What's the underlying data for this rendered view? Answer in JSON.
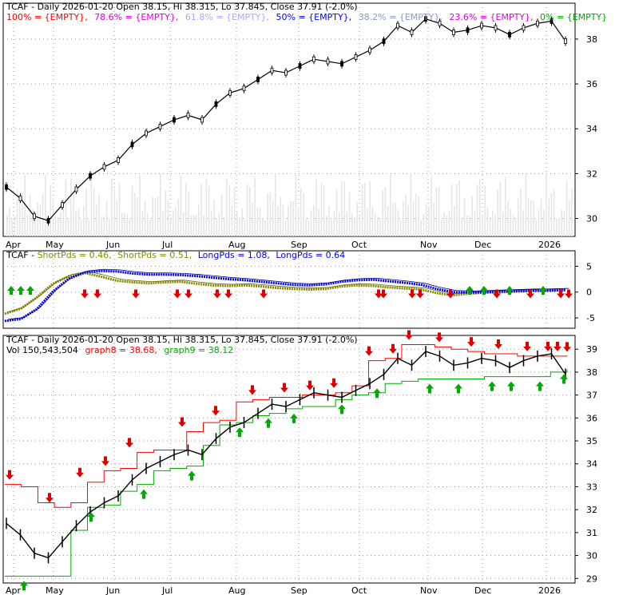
{
  "chart_data": [
    {
      "type": "line",
      "title": "TCAF - Daily 2026-01-20 Open 38.15, Hi 38.315, Lo 37.845, Close 37.91 (-2.0%)",
      "fib_legend": [
        {
          "text": "100% = {EMPTY},",
          "color": "#ff0000"
        },
        {
          "text": "78.6% = {EMPTY},",
          "color": "#dd00dd"
        },
        {
          "text": "61.8% = {EMPTY},",
          "color": "#aaaaff"
        },
        {
          "text": "50% = {EMPTY},",
          "color": "#0000ff"
        },
        {
          "text": "38.2% = {EMPTY},",
          "color": "#8899cc"
        },
        {
          "text": "23.6% = {EMPTY},",
          "color": "#dd00dd"
        },
        {
          "text": "0% = {EMPTY}",
          "color": "#00aa00"
        }
      ],
      "x_tick_labels": [
        "Apr",
        "May",
        "Jun",
        "Jul",
        "Aug",
        "Sep",
        "Oct",
        "Nov",
        "Dec",
        "2026"
      ],
      "y_tick_labels": [
        "30",
        "32",
        "34",
        "36",
        "38"
      ],
      "ylim": [
        29.2,
        39.6
      ],
      "grid": true,
      "series": [
        {
          "values": [
            31.4,
            30.9,
            30.1,
            29.9,
            30.6,
            31.3,
            31.9,
            32.3,
            32.6,
            33.3,
            33.8,
            34.1,
            34.4,
            34.6,
            34.4,
            35.1,
            35.6,
            35.8,
            36.2,
            36.6,
            36.5,
            36.8,
            37.1,
            37.0,
            36.9,
            37.2,
            37.5,
            37.9,
            38.6,
            38.3,
            38.9,
            38.7,
            38.3,
            38.4,
            38.6,
            38.5,
            38.2,
            38.5,
            38.7,
            38.8,
            37.91
          ]
        }
      ]
    },
    {
      "type": "line",
      "legend": [
        {
          "text": "TCAF - ",
          "color": "#000000"
        },
        {
          "text": "ShortPds = 0.46,",
          "color": "#888800"
        },
        {
          "text": "ShortPds = 0.51,",
          "color": "#888800"
        },
        {
          "text": "LongPds = 1.08,",
          "color": "#0000ff"
        },
        {
          "text": "LongPds = 0.64",
          "color": "#0000ff"
        }
      ],
      "y_tick_labels": [
        "5",
        "0",
        "-5"
      ],
      "ylim": [
        -7,
        8
      ],
      "grid": true,
      "series": [
        {
          "name": "ShortPds",
          "values": [
            -4.2,
            -3.2,
            -1.0,
            1.6,
            3.1,
            3.7,
            3.0,
            2.2,
            1.9,
            1.7,
            1.9,
            2.0,
            1.6,
            1.3,
            1.2,
            1.3,
            1.1,
            0.8,
            0.6,
            0.5,
            0.6,
            1.1,
            1.3,
            1.2,
            0.9,
            0.7,
            0.5,
            -0.2,
            -0.6,
            -0.3,
            -0.1,
            0.0,
            0.1,
            0.2,
            0.3,
            0.4
          ]
        },
        {
          "name": "LongPds",
          "values": [
            -5.6,
            -5.2,
            -3.3,
            0.1,
            2.6,
            3.8,
            4.1,
            4.0,
            3.6,
            3.4,
            3.4,
            3.3,
            3.1,
            2.8,
            2.5,
            2.3,
            2.0,
            1.7,
            1.4,
            1.3,
            1.5,
            2.0,
            2.3,
            2.4,
            2.1,
            1.8,
            1.4,
            0.6,
            0.0,
            -0.1,
            0.0,
            0.1,
            0.2,
            0.3,
            0.3,
            0.4
          ]
        }
      ]
    },
    {
      "type": "line",
      "title": "TCAF - Daily 2026-01-20 Open 38.15, Hi 38.315, Lo 37.845, Close 37.91 (-2.0%)",
      "legend": [
        {
          "text": "Vol 150,543,504",
          "color": "#000000"
        },
        {
          "text": "graph8 = 38.68,",
          "color": "#ff0000"
        },
        {
          "text": "graph9 = 38.12",
          "color": "#00aa00"
        }
      ],
      "x_tick_labels": [
        "Apr",
        "May",
        "Jun",
        "Jul",
        "Aug",
        "Sep",
        "Oct",
        "Nov",
        "Dec",
        "2026"
      ],
      "y_tick_labels": [
        "39",
        "38",
        "37",
        "36",
        "35",
        "34",
        "33",
        "32",
        "31",
        "30",
        "29"
      ],
      "ylim": [
        28.8,
        39.6
      ],
      "grid": true,
      "series": [
        {
          "name": "graph8",
          "values": [
            33.1,
            33.0,
            32.3,
            32.1,
            32.3,
            33.2,
            33.7,
            33.8,
            34.5,
            34.6,
            34.6,
            35.4,
            35.8,
            35.9,
            36.7,
            36.8,
            36.9,
            36.9,
            37.0,
            37.0,
            37.1,
            37.4,
            38.5,
            38.6,
            39.2,
            39.2,
            39.1,
            39.0,
            38.9,
            38.8,
            38.8,
            38.7,
            38.7,
            38.7,
            38.68
          ]
        },
        {
          "name": "graph9",
          "values": [
            29.1,
            29.1,
            29.1,
            29.1,
            31.1,
            32.1,
            32.2,
            32.8,
            33.1,
            33.7,
            33.8,
            33.9,
            34.8,
            35.7,
            35.8,
            36.1,
            36.2,
            36.4,
            36.5,
            36.5,
            36.8,
            37.0,
            37.1,
            37.5,
            37.6,
            37.7,
            37.7,
            37.7,
            37.7,
            37.8,
            37.8,
            37.8,
            37.8,
            38.0,
            38.12
          ]
        }
      ]
    }
  ]
}
